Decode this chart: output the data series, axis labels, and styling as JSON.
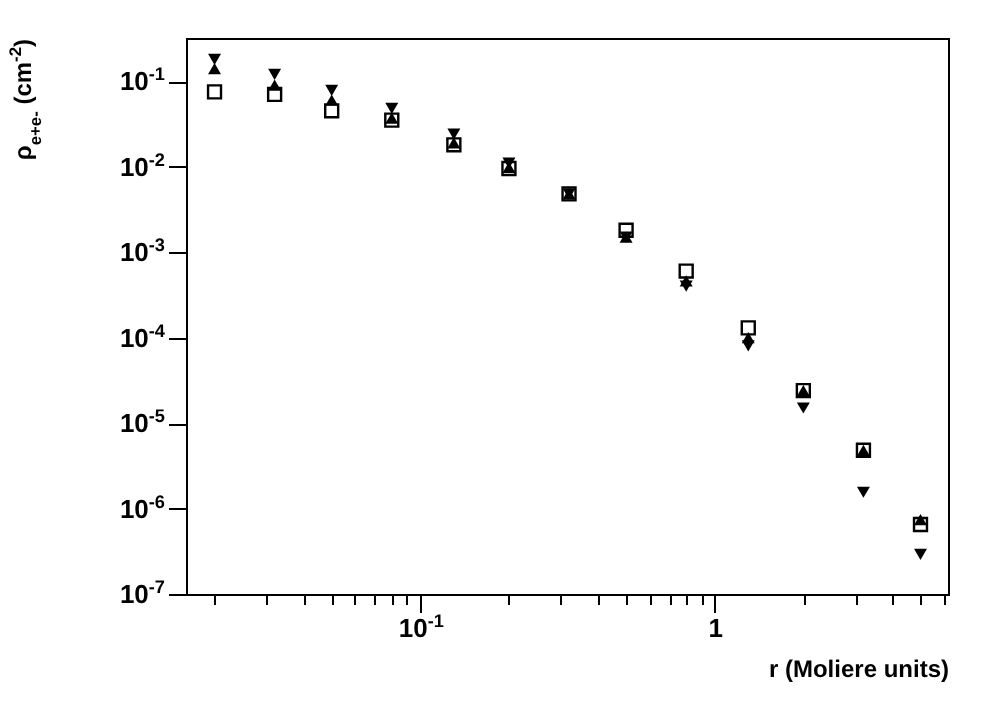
{
  "chart_data": {
    "type": "scatter",
    "xlabel": "r (Moliere units)",
    "ylabel": "ρ$_{e+e-}$ (cm$^{-2}$)",
    "x": [
      0.02,
      0.032,
      0.05,
      0.08,
      0.13,
      0.2,
      0.32,
      0.5,
      0.8,
      1.3,
      2,
      3.2,
      5
    ],
    "series": [
      {
        "color": "#000000",
        "marker": "square",
        "values": [
          0.075,
          0.07,
          0.045,
          0.035,
          0.018,
          0.0095,
          0.0048,
          0.0018,
          0.0006,
          0.00013,
          2.4e-05,
          4.8e-06,
          6.5e-07
        ]
      },
      {
        "color": "#000000",
        "marker": "triangle",
        "values": [
          0.14,
          0.09,
          0.06,
          0.037,
          0.019,
          0.0098,
          0.0048,
          0.0015,
          0.00046,
          0.0001,
          2.4e-05,
          4.8e-06,
          7.4e-07
        ]
      },
      {
        "color": "#000000",
        "marker": "triangle-down",
        "values": [
          0.18,
          0.12,
          0.078,
          0.048,
          0.024,
          0.011,
          0.0048,
          0.0015,
          0.0004,
          8e-05,
          1.5e-05,
          1.55e-06,
          2.9e-07
        ]
      }
    ],
    "log": "xy",
    "xlim": [
      0.016,
      6.2
    ],
    "ylim": [
      1e-07,
      0.32
    ],
    "xticks": [
      {
        "value": 0.02,
        "label": null
      },
      {
        "value": 0.03,
        "label": null
      },
      {
        "value": 0.04,
        "label": null
      },
      {
        "value": 0.05,
        "label": null
      },
      {
        "value": 0.06,
        "label": null
      },
      {
        "value": 0.07,
        "label": null
      },
      {
        "value": 0.08,
        "label": null
      },
      {
        "value": 0.09,
        "label": null
      },
      {
        "value": 0.1,
        "label": "10$^{-1}$"
      },
      {
        "value": 0.2,
        "label": null
      },
      {
        "value": 0.3,
        "label": null
      },
      {
        "value": 0.4,
        "label": null
      },
      {
        "value": 0.5,
        "label": null
      },
      {
        "value": 0.6,
        "label": null
      },
      {
        "value": 0.7,
        "label": null
      },
      {
        "value": 0.8,
        "label": null
      },
      {
        "value": 0.9,
        "label": null
      },
      {
        "value": 1,
        "label": "1"
      },
      {
        "value": 2,
        "label": null
      },
      {
        "value": 3,
        "label": null
      },
      {
        "value": 4,
        "label": null
      },
      {
        "value": 5,
        "label": null
      },
      {
        "value": 6,
        "label": null
      }
    ],
    "yticks": [
      {
        "value": 1e-07,
        "label": "10$^{-7}$"
      },
      {
        "value": 1e-06,
        "label": "10$^{-6}$"
      },
      {
        "value": 1e-05,
        "label": "10$^{-5}$"
      },
      {
        "value": 0.0001,
        "label": "10$^{-4}$"
      },
      {
        "value": 0.001,
        "label": "10$^{-3}$"
      },
      {
        "value": 0.01,
        "label": "10$^{-2}$"
      },
      {
        "value": 0.1,
        "label": "10$^{-1}$"
      }
    ]
  }
}
